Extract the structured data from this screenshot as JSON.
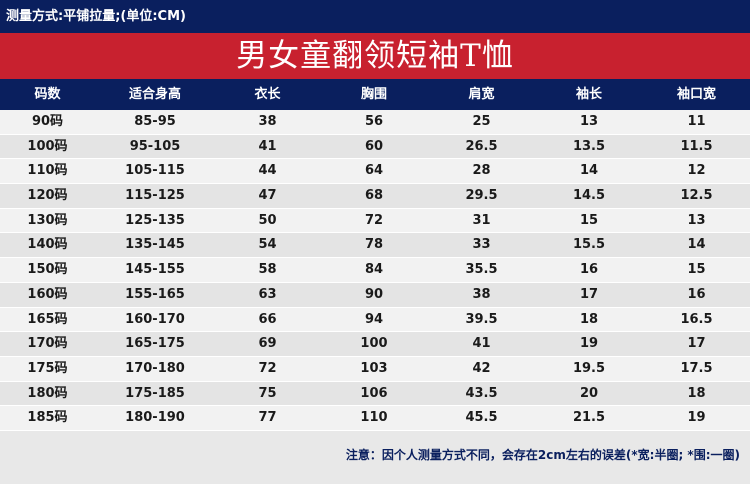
{
  "measure_method": "测量方式:平铺拉量;(单位:CM)",
  "title": "男女童翻领短袖T恤",
  "table": {
    "headers": [
      "码数",
      "适合身高",
      "衣长",
      "胸围",
      "肩宽",
      "袖长",
      "袖口宽"
    ],
    "rows": [
      [
        "90码",
        "85-95",
        "38",
        "56",
        "25",
        "13",
        "11"
      ],
      [
        "100码",
        "95-105",
        "41",
        "60",
        "26.5",
        "13.5",
        "11.5"
      ],
      [
        "110码",
        "105-115",
        "44",
        "64",
        "28",
        "14",
        "12"
      ],
      [
        "120码",
        "115-125",
        "47",
        "68",
        "29.5",
        "14.5",
        "12.5"
      ],
      [
        "130码",
        "125-135",
        "50",
        "72",
        "31",
        "15",
        "13"
      ],
      [
        "140码",
        "135-145",
        "54",
        "78",
        "33",
        "15.5",
        "14"
      ],
      [
        "150码",
        "145-155",
        "58",
        "84",
        "35.5",
        "16",
        "15"
      ],
      [
        "160码",
        "155-165",
        "63",
        "90",
        "38",
        "17",
        "16"
      ],
      [
        "165码",
        "160-170",
        "66",
        "94",
        "39.5",
        "18",
        "16.5"
      ],
      [
        "170码",
        "165-175",
        "69",
        "100",
        "41",
        "19",
        "17"
      ],
      [
        "175码",
        "170-180",
        "72",
        "103",
        "42",
        "19.5",
        "17.5"
      ],
      [
        "180码",
        "175-185",
        "75",
        "106",
        "43.5",
        "20",
        "18"
      ],
      [
        "185码",
        "180-190",
        "77",
        "110",
        "45.5",
        "21.5",
        "19"
      ]
    ]
  },
  "note": "注意：因个人测量方式不同，会存在2cm左右的误差(*宽:半圈; *围:一圈)",
  "colors": {
    "navy": "#0a1f5e",
    "red": "#c8212f"
  }
}
